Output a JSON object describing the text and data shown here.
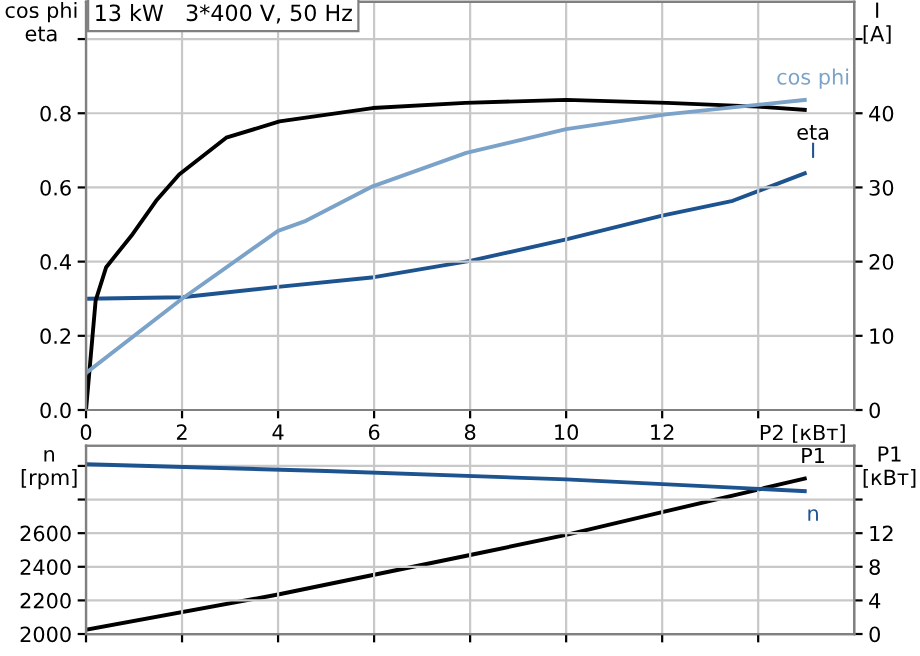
{
  "chart_data": [
    {
      "type": "line",
      "title": "13 kW   3*400 V, 50 Hz",
      "xlabel": "P2 [кВт]",
      "ylabel": "cos phi\neta",
      "y2label": "I\n[A]",
      "xlim": [
        0,
        16
      ],
      "xticks": [
        0,
        2,
        4,
        6,
        8,
        10,
        12,
        {
          "value": 14,
          "label": null
        }
      ],
      "ylim": [
        0,
        1.1
      ],
      "yticks": [
        {
          "value": 0,
          "label": "0.0"
        },
        0.2,
        0.4,
        0.6,
        0.8,
        {
          "value": 1.0,
          "label": null
        }
      ],
      "y2lim": [
        0,
        55
      ],
      "y2ticks": [
        0,
        10,
        20,
        30,
        40,
        {
          "value": 50,
          "label": null
        }
      ],
      "grid": true,
      "marker": "none",
      "line_style": "solid",
      "series": [
        {
          "name": "eta",
          "color": "#000000",
          "x": [
            0,
            0.2,
            0.42,
            0.97,
            1.46,
            1.94,
            2.92,
            4.03,
            5.97,
            7.9,
            10,
            12.1,
            14,
            14.97
          ],
          "values": [
            0,
            0.295,
            0.385,
            0.474,
            0.564,
            0.635,
            0.734,
            0.778,
            0.814,
            0.828,
            0.836,
            0.828,
            0.818,
            0.809
          ]
        },
        {
          "name": "cos phi",
          "color": "#7ba3c9",
          "x": [
            0,
            2,
            4,
            4.58,
            5.97,
            7.92,
            10,
            12.08,
            14.97
          ],
          "values": [
            0.1,
            0.3,
            0.483,
            0.51,
            0.603,
            0.693,
            0.757,
            0.797,
            0.836
          ]
        },
        {
          "name": "I",
          "color": "#1d5490",
          "axis": "y2",
          "x": [
            0,
            2,
            4,
            6,
            8,
            10,
            12,
            13.47,
            14.97
          ],
          "values": [
            15,
            15.2,
            16.6,
            17.9,
            20.1,
            23.0,
            26.2,
            28.2,
            31.9
          ]
        }
      ]
    },
    {
      "type": "line",
      "ylabel": "n\n[rpm]",
      "y2label": "P1\n[кВт]",
      "tick_labels": "y",
      "xlim": [
        0,
        16
      ],
      "xticks": [
        0,
        2,
        4,
        6,
        8,
        10,
        12,
        14
      ],
      "ylim": [
        2000,
        3120
      ],
      "yticks": [
        2000,
        2200,
        2400,
        2600,
        {
          "value": 2800,
          "label": null
        },
        {
          "value": 3000,
          "label": null
        }
      ],
      "y2lim": [
        0,
        22.4
      ],
      "y2ticks": [
        0,
        4,
        8,
        12,
        {
          "value": 16,
          "label": null
        },
        {
          "value": 20,
          "label": null
        }
      ],
      "grid": true,
      "marker": "none",
      "line_style": "solid",
      "series": [
        {
          "name": "n",
          "color": "#1d5490",
          "x": [
            0,
            5,
            10,
            14.97
          ],
          "values": [
            3010,
            2970,
            2920,
            2850
          ]
        },
        {
          "name": "P1",
          "color": "#000000",
          "axis": "y2",
          "x": [
            0,
            4,
            8,
            10,
            12,
            14.97
          ],
          "values": [
            0.5,
            4.7,
            9.4,
            11.8,
            14.5,
            18.5
          ]
        }
      ]
    }
  ]
}
